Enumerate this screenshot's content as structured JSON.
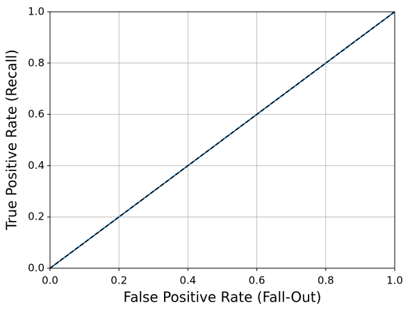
{
  "chart_data": {
    "type": "line",
    "xlabel": "False Positive Rate (Fall-Out)",
    "ylabel": "True Positive Rate (Recall)",
    "xlim": [
      0,
      1
    ],
    "ylim": [
      0,
      1
    ],
    "xticks": [
      {
        "value": 0,
        "label": "0.0"
      },
      {
        "value": 0.2,
        "label": "0.2"
      },
      {
        "value": 0.4,
        "label": "0.4"
      },
      {
        "value": 0.6,
        "label": "0.6"
      },
      {
        "value": 0.8,
        "label": "0.8"
      },
      {
        "value": 1,
        "label": "1.0"
      }
    ],
    "yticks": [
      {
        "value": 0,
        "label": "0.0"
      },
      {
        "value": 0.2,
        "label": "0.2"
      },
      {
        "value": 0.4,
        "label": "0.4"
      },
      {
        "value": 0.6,
        "label": "0.6"
      },
      {
        "value": 0.8,
        "label": "0.8"
      },
      {
        "value": 1,
        "label": "1.0"
      }
    ],
    "grid": true,
    "series": [
      {
        "color": "#1f77b4",
        "linestyle": "solid",
        "x": [
          0,
          1
        ],
        "values": [
          0,
          1
        ]
      },
      {
        "color": "#000000",
        "linestyle": "dashed",
        "x": [
          0,
          1
        ],
        "values": [
          0,
          1
        ]
      }
    ]
  }
}
